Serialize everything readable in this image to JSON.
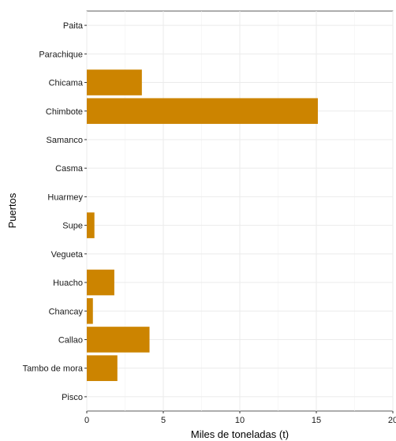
{
  "chart_data": {
    "type": "bar",
    "orientation": "horizontal",
    "categories": [
      "Paita",
      "Parachique",
      "Chicama",
      "Chimbote",
      "Samanco",
      "Casma",
      "Huarmey",
      "Supe",
      "Vegueta",
      "Huacho",
      "Chancay",
      "Callao",
      "Tambo de mora",
      "Pisco"
    ],
    "values": [
      0,
      0,
      3.6,
      15.1,
      0,
      0,
      0,
      0.5,
      0,
      1.8,
      0.4,
      4.1,
      2.0,
      0
    ],
    "xlabel": "Miles de toneladas (t)",
    "ylabel": "Puertos",
    "xlim": [
      0,
      20
    ],
    "xticks": [
      0,
      5,
      10,
      15,
      20
    ],
    "bar_color": "#cc8400",
    "grid": true
  }
}
